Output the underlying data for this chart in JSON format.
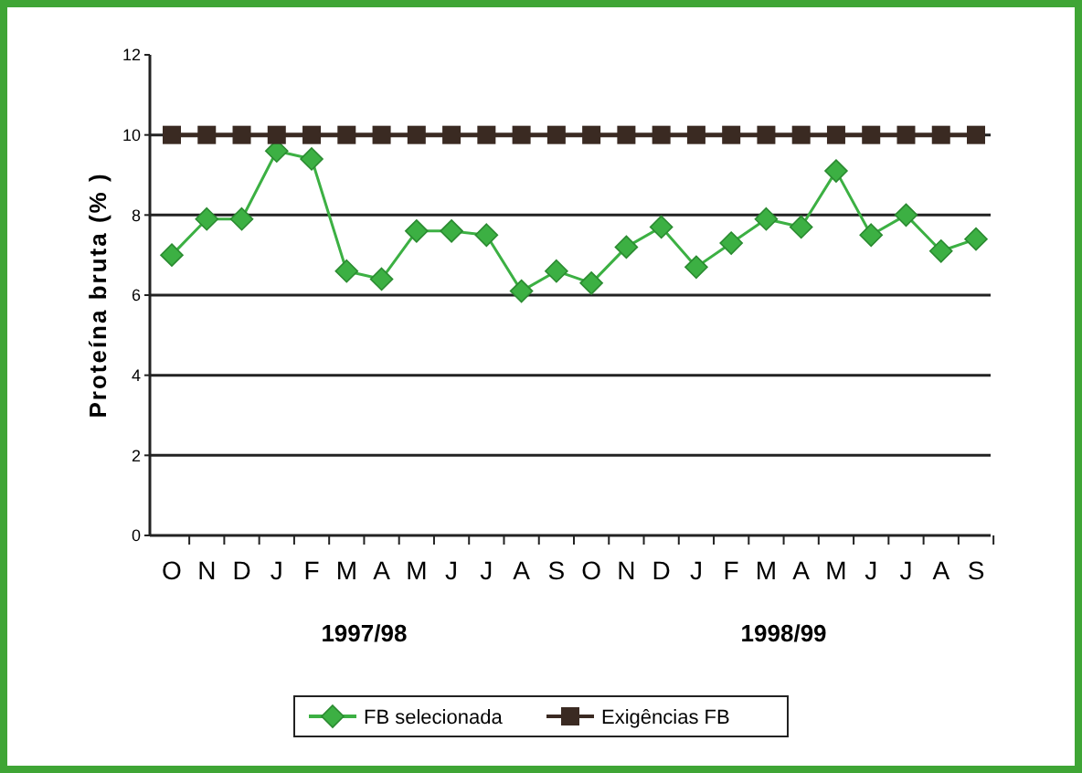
{
  "chart_data": {
    "type": "line",
    "ylabel": "Proteína bruta (% )",
    "categories": [
      "O",
      "N",
      "D",
      "J",
      "F",
      "M",
      "A",
      "M",
      "J",
      "J",
      "A",
      "S",
      "O",
      "N",
      "D",
      "J",
      "F",
      "M",
      "A",
      "M",
      "J",
      "J",
      "A",
      "S"
    ],
    "series": [
      {
        "name": "FB selecionada",
        "color": "#3cb043",
        "marker": "diamond",
        "values": [
          7.0,
          7.9,
          7.9,
          9.6,
          9.4,
          6.6,
          6.4,
          7.6,
          7.6,
          7.5,
          6.1,
          6.6,
          6.3,
          7.2,
          7.7,
          6.7,
          7.3,
          7.9,
          7.7,
          9.1,
          7.5,
          8.0,
          7.1,
          7.4
        ]
      },
      {
        "name": "Exigências FB",
        "color": "#3a2a22",
        "marker": "square",
        "values": [
          10,
          10,
          10,
          10,
          10,
          10,
          10,
          10,
          10,
          10,
          10,
          10,
          10,
          10,
          10,
          10,
          10,
          10,
          10,
          10,
          10,
          10,
          10,
          10
        ]
      }
    ],
    "ylim": [
      0,
      12
    ],
    "yticks": [
      0,
      2,
      4,
      6,
      8,
      10,
      12
    ],
    "grid": "y",
    "legend": "bottom",
    "annotations": [
      "1997/98",
      "1998/99"
    ]
  }
}
